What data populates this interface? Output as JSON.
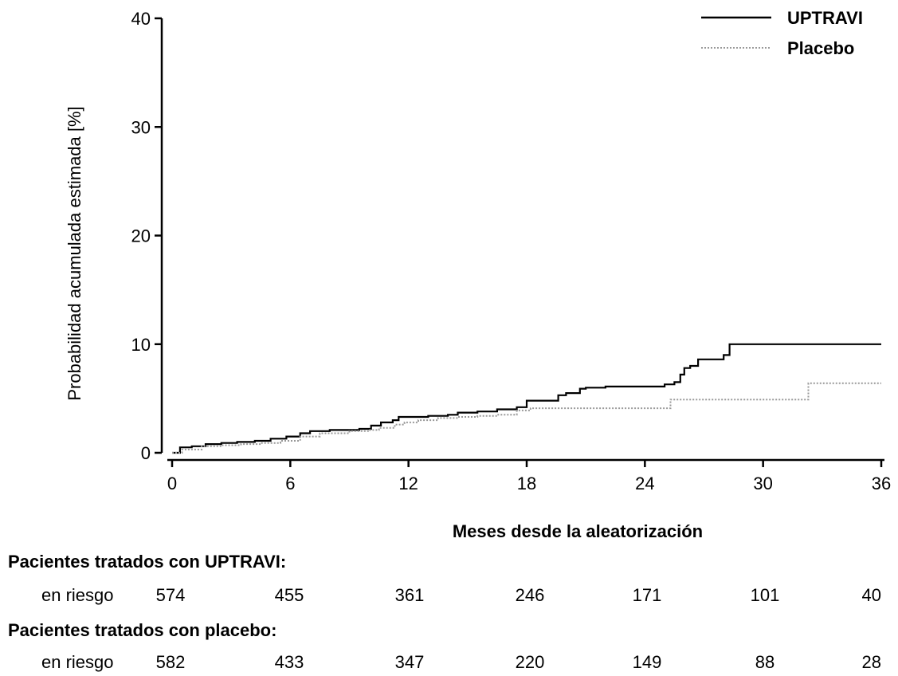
{
  "chart_data": {
    "type": "line",
    "title": "",
    "xlabel": "Meses desde la aleatorización",
    "ylabel": "Probabilidad acumulada estimada [%]",
    "xlim": [
      0,
      36
    ],
    "ylim": [
      0,
      40
    ],
    "x_ticks": [
      0,
      6,
      12,
      18,
      24,
      30,
      36
    ],
    "y_ticks": [
      0,
      10,
      20,
      30,
      40
    ],
    "grid": false,
    "legend_position": "top-right",
    "series": [
      {
        "name": "UPTRAVI",
        "line_style": "solid",
        "color": "#000000",
        "x": [
          0,
          0.4,
          1.0,
          1.7,
          2.5,
          3.3,
          4.2,
          5.0,
          5.8,
          6.5,
          7.0,
          8.0,
          9.5,
          10.1,
          10.6,
          11.2,
          11.5,
          12.0,
          13.0,
          14.0,
          14.5,
          15.5,
          16.5,
          17.5,
          18.0,
          18.5,
          19.6,
          20.0,
          20.7,
          21.0,
          22.0,
          23.0,
          24.0,
          25.0,
          25.5,
          25.8,
          26.0,
          26.3,
          26.7,
          27.5,
          28.0,
          28.3,
          29.0,
          30.0,
          32.0,
          34.0,
          36.0
        ],
        "y": [
          0,
          0.5,
          0.6,
          0.8,
          0.9,
          1.0,
          1.1,
          1.3,
          1.5,
          1.8,
          2.0,
          2.1,
          2.2,
          2.5,
          2.8,
          3.0,
          3.3,
          3.3,
          3.4,
          3.5,
          3.7,
          3.8,
          4.0,
          4.2,
          4.8,
          4.8,
          5.3,
          5.5,
          5.9,
          6.0,
          6.1,
          6.1,
          6.1,
          6.3,
          6.5,
          7.2,
          7.8,
          8.0,
          8.6,
          8.6,
          9.0,
          10.0,
          10.0,
          10.0,
          10.0,
          10.0,
          10.0
        ]
      },
      {
        "name": "Placebo",
        "line_style": "dotted",
        "color": "#999999",
        "x": [
          0,
          0.5,
          1.5,
          2.5,
          3.5,
          4.5,
          5.5,
          6.5,
          7.5,
          9.0,
          10.0,
          10.5,
          11.3,
          11.8,
          12.5,
          13.5,
          14.5,
          15.5,
          16.5,
          17.5,
          18.2,
          19.0,
          20.0,
          21.0,
          22.0,
          23.0,
          24.0,
          25.0,
          25.3,
          26.0,
          27.0,
          28.0,
          29.0,
          30.0,
          31.0,
          32.0,
          32.3,
          33.0,
          34.0,
          35.0,
          36.0
        ],
        "y": [
          0,
          0.3,
          0.6,
          0.7,
          0.8,
          0.9,
          1.1,
          1.5,
          1.8,
          2.0,
          2.1,
          2.3,
          2.6,
          2.8,
          3.0,
          3.2,
          3.3,
          3.4,
          3.5,
          3.9,
          4.1,
          4.1,
          4.1,
          4.1,
          4.1,
          4.1,
          4.1,
          4.1,
          4.9,
          4.9,
          4.9,
          4.9,
          4.9,
          4.9,
          4.9,
          4.9,
          6.4,
          6.4,
          6.4,
          6.4,
          6.4
        ]
      }
    ]
  },
  "risk_table": {
    "groups": [
      {
        "heading": "Pacientes tratados con UPTRAVI:",
        "label": "en riesgo",
        "values": [
          "574",
          "455",
          "361",
          "246",
          "171",
          "101",
          "40"
        ]
      },
      {
        "heading": "Pacientes tratados con placebo:",
        "label": "en riesgo",
        "values": [
          "582",
          "433",
          "347",
          "220",
          "149",
          "88",
          "28"
        ]
      }
    ]
  }
}
